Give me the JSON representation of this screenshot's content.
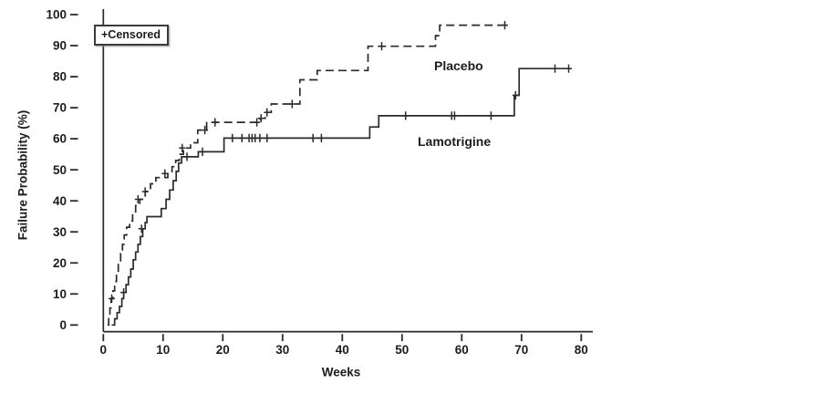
{
  "chart_data": {
    "type": "line",
    "subtype": "kaplan-meier-step-curve",
    "title": "",
    "xlabel": "Weeks",
    "ylabel": "Failure Probability (%)",
    "xlim": [
      0,
      80
    ],
    "ylim": [
      0,
      100
    ],
    "grid": "off",
    "x_ticks": [
      0,
      10,
      20,
      30,
      40,
      50,
      60,
      70,
      80
    ],
    "y_ticks": [
      0,
      10,
      20,
      30,
      40,
      50,
      60,
      70,
      80,
      90,
      100
    ],
    "legend": {
      "label": "+Censored",
      "position": "top-left",
      "framed": true
    },
    "line_color": "#2a2a2a",
    "text_color": "#1c1c1c",
    "series": [
      {
        "name": "Placebo",
        "style": "dashed",
        "label_position": "above curve, right-center of plot",
        "steps": [
          [
            0.7,
            0
          ],
          [
            0.9,
            2.5
          ],
          [
            1.1,
            5.5
          ],
          [
            1.3,
            8.5
          ],
          [
            1.6,
            11
          ],
          [
            1.9,
            14
          ],
          [
            2.2,
            17
          ],
          [
            2.5,
            20
          ],
          [
            2.9,
            23
          ],
          [
            3.2,
            26
          ],
          [
            3.5,
            29
          ],
          [
            3.9,
            31.5
          ],
          [
            4.4,
            33.5
          ],
          [
            4.9,
            36
          ],
          [
            5.4,
            38.5
          ],
          [
            6.1,
            40.5
          ],
          [
            7.0,
            43
          ],
          [
            7.9,
            45.5
          ],
          [
            8.8,
            47.5
          ],
          [
            10.8,
            48.8
          ],
          [
            11.5,
            51
          ],
          [
            12.1,
            53
          ],
          [
            12.7,
            55
          ],
          [
            13.4,
            57
          ],
          [
            14.6,
            58.7
          ],
          [
            15.8,
            62.8
          ],
          [
            17.3,
            65.3
          ],
          [
            26.3,
            66.6
          ],
          [
            27.1,
            68.5
          ],
          [
            28.1,
            71.2
          ],
          [
            32.9,
            79
          ],
          [
            35.8,
            82
          ],
          [
            44.3,
            89.8
          ],
          [
            55.6,
            93.2
          ],
          [
            56.3,
            96.6
          ]
        ],
        "end_week": 67.4,
        "censored": [
          [
            1.4,
            8.5
          ],
          [
            5.8,
            40.5
          ],
          [
            7.0,
            43
          ],
          [
            10.3,
            48.8
          ],
          [
            13.2,
            57
          ],
          [
            17.0,
            62.8
          ],
          [
            18.7,
            65.3
          ],
          [
            25.7,
            65.3
          ],
          [
            26.4,
            66.6
          ],
          [
            27.4,
            68.5
          ],
          [
            31.6,
            71.2
          ],
          [
            46.6,
            89.8
          ],
          [
            67.2,
            96.6
          ]
        ]
      },
      {
        "name": "Lamotrigine",
        "style": "solid",
        "label_position": "below curve, right-center of plot",
        "steps": [
          [
            1.4,
            0
          ],
          [
            1.9,
            2
          ],
          [
            2.3,
            4
          ],
          [
            2.7,
            6
          ],
          [
            3.1,
            8.5
          ],
          [
            3.4,
            10.5
          ],
          [
            3.8,
            13
          ],
          [
            4.2,
            15.5
          ],
          [
            4.6,
            18
          ],
          [
            5.0,
            21
          ],
          [
            5.4,
            23.5
          ],
          [
            5.8,
            26
          ],
          [
            6.2,
            28.5
          ],
          [
            6.6,
            31
          ],
          [
            7.0,
            33
          ],
          [
            7.3,
            34.9
          ],
          [
            9.7,
            37.5
          ],
          [
            10.5,
            40.5
          ],
          [
            11.1,
            43.5
          ],
          [
            11.7,
            46.5
          ],
          [
            12.2,
            49.5
          ],
          [
            12.6,
            52.2
          ],
          [
            13.1,
            54.2
          ],
          [
            15.9,
            55.8
          ],
          [
            20.2,
            60.2
          ],
          [
            44.6,
            63.8
          ],
          [
            46.1,
            67.4
          ],
          [
            68.8,
            74
          ],
          [
            69.6,
            82.6
          ]
        ],
        "end_week": 78.2,
        "censored": [
          [
            3.4,
            10.5
          ],
          [
            6.4,
            31
          ],
          [
            14.0,
            54.2
          ],
          [
            16.6,
            55.8
          ],
          [
            21.6,
            60.2
          ],
          [
            23.2,
            60.2
          ],
          [
            24.4,
            60.2
          ],
          [
            24.9,
            60.2
          ],
          [
            25.4,
            60.2
          ],
          [
            26.2,
            60.2
          ],
          [
            27.4,
            60.2
          ],
          [
            35.1,
            60.2
          ],
          [
            36.5,
            60.2
          ],
          [
            50.6,
            67.4
          ],
          [
            58.3,
            67.4
          ],
          [
            58.8,
            67.4
          ],
          [
            64.9,
            67.4
          ],
          [
            69.0,
            74
          ],
          [
            75.6,
            82.6
          ],
          [
            77.9,
            82.6
          ]
        ]
      }
    ]
  }
}
